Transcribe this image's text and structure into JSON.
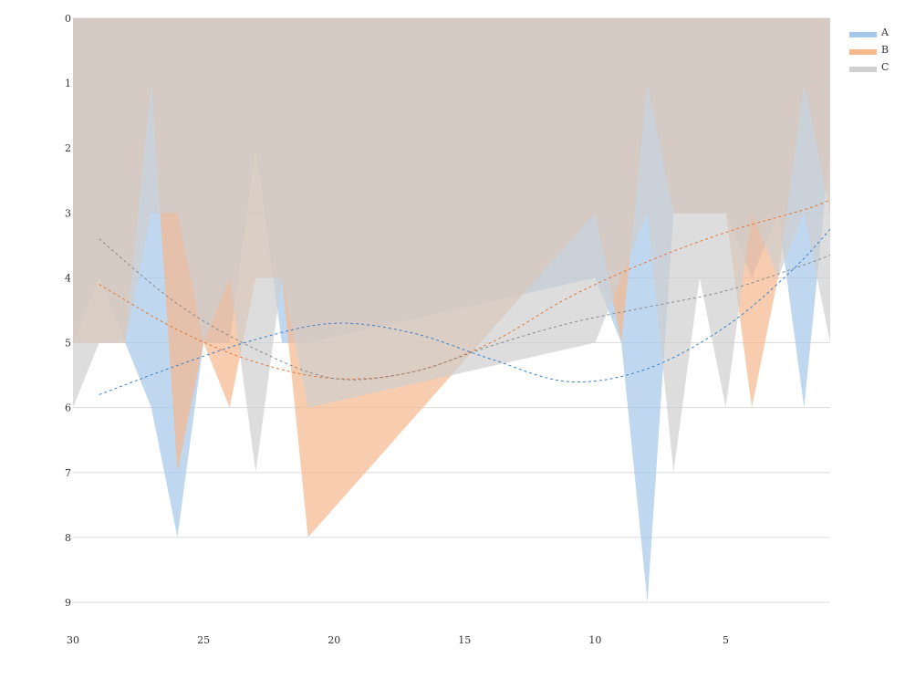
{
  "chart_data": {
    "type": "area",
    "title": "",
    "xlabel": "",
    "ylabel": "",
    "x": [
      30,
      29,
      28,
      27,
      26,
      25,
      24,
      23,
      22,
      21,
      10,
      9,
      8,
      7,
      6,
      5,
      4,
      3,
      2,
      1
    ],
    "xlim": [
      30,
      1
    ],
    "x_ticks": [
      30,
      25,
      20,
      15,
      10,
      5
    ],
    "ylim": [
      0,
      9
    ],
    "y_ticks": [
      0,
      1,
      2,
      3,
      4,
      5,
      6,
      7,
      8,
      9
    ],
    "y_inverted": true,
    "grid": "horizontal",
    "legend_position": "top-right",
    "series": [
      {
        "name": "A",
        "color": "#a4c8ea",
        "trend_color": "#3a7fc9",
        "values": [
          5,
          4,
          5,
          6,
          8,
          5,
          5,
          2,
          5,
          5,
          4,
          5,
          9,
          3,
          3,
          3,
          4,
          3,
          6,
          2
        ],
        "trend": [
          [
            29,
            5.8
          ],
          [
            26,
            5.35
          ],
          [
            23,
            4.95
          ],
          [
            20,
            4.7
          ],
          [
            17,
            4.85
          ],
          [
            14,
            5.25
          ],
          [
            11,
            5.6
          ],
          [
            8,
            5.4
          ],
          [
            5,
            4.75
          ],
          [
            2.5,
            3.9
          ],
          [
            1,
            3.25
          ]
        ]
      },
      {
        "name": "B",
        "color": "#f5b88d",
        "trend_color": "#e0783a",
        "values": [
          5,
          5,
          5,
          1,
          7,
          5,
          6,
          4,
          4,
          8,
          3,
          5,
          1,
          3,
          3,
          3,
          6,
          4,
          1,
          3
        ],
        "trend": [
          [
            29,
            4.1
          ],
          [
            26,
            4.8
          ],
          [
            23,
            5.3
          ],
          [
            20,
            5.55
          ],
          [
            17,
            5.45
          ],
          [
            14,
            5.0
          ],
          [
            11,
            4.3
          ],
          [
            8,
            3.75
          ],
          [
            5,
            3.3
          ],
          [
            2,
            2.95
          ],
          [
            1,
            2.8
          ]
        ]
      },
      {
        "name": "C",
        "color": "#cfcfcf",
        "trend_color": "#888888",
        "values": [
          6,
          5,
          5,
          3,
          3,
          5,
          4,
          7,
          4,
          6,
          5,
          4,
          3,
          7,
          4,
          6,
          3,
          4,
          3,
          5
        ],
        "trend": [
          [
            29,
            3.4
          ],
          [
            26,
            4.4
          ],
          [
            23,
            5.1
          ],
          [
            20,
            5.55
          ],
          [
            17,
            5.45
          ],
          [
            14,
            5.05
          ],
          [
            11,
            4.7
          ],
          [
            8,
            4.45
          ],
          [
            5,
            4.2
          ],
          [
            2,
            3.8
          ],
          [
            1,
            3.65
          ]
        ]
      }
    ]
  }
}
